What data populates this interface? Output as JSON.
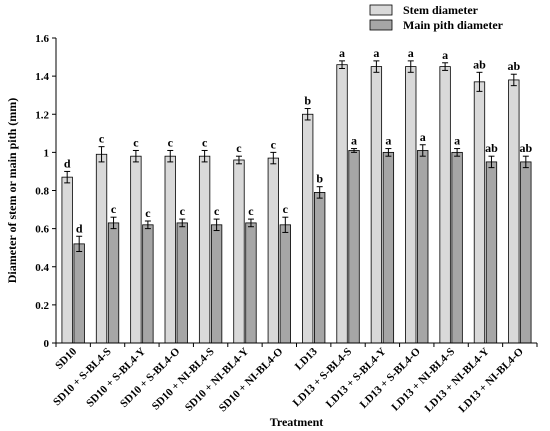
{
  "chart_data": {
    "type": "bar",
    "xlabel": "Treatment",
    "ylabel": "Diameter of stem or main pith (mm)",
    "ylim": [
      0,
      1.6
    ],
    "yticks": [
      "0",
      "0.2",
      "0.4",
      "0.6",
      "0.8",
      "1",
      "1.2",
      "1.4",
      "1.6"
    ],
    "legend_position": "top-right",
    "categories": [
      "SD10",
      "SD10 + S-BL4-S",
      "SD10 + S-BL4-Y",
      "SD10 + S-BL4-O",
      "SD10 + NI-BL4-S",
      "SD10 + NI-BL4-Y",
      "SD10 + NI-BL4-O",
      "LD13",
      "LD13 + S-BL4-S",
      "LD13 + S-BL4-Y",
      "LD13 + S-BL4-O",
      "LD13 + NI-BL4-S",
      "LD13 + NI-BL4-Y",
      "LD13 + NI-BL4-O"
    ],
    "series": [
      {
        "name": "Stem diameter",
        "color": "#d9d9d9",
        "values": [
          0.87,
          0.99,
          0.98,
          0.98,
          0.98,
          0.96,
          0.97,
          1.2,
          1.46,
          1.45,
          1.45,
          1.45,
          1.37,
          1.38
        ],
        "errors": [
          0.03,
          0.04,
          0.03,
          0.03,
          0.03,
          0.02,
          0.03,
          0.03,
          0.02,
          0.03,
          0.03,
          0.02,
          0.05,
          0.03
        ],
        "letters": [
          "d",
          "c",
          "c",
          "c",
          "c",
          "c",
          "c",
          "b",
          "a",
          "a",
          "a",
          "a",
          "ab",
          "ab"
        ]
      },
      {
        "name": "Main pith diameter",
        "color": "#a6a6a6",
        "values": [
          0.52,
          0.63,
          0.62,
          0.63,
          0.62,
          0.63,
          0.62,
          0.79,
          1.01,
          1.0,
          1.01,
          1.0,
          0.95,
          0.95
        ],
        "errors": [
          0.04,
          0.03,
          0.02,
          0.02,
          0.03,
          0.02,
          0.04,
          0.03,
          0.01,
          0.02,
          0.03,
          0.02,
          0.03,
          0.03
        ],
        "letters": [
          "d",
          "c",
          "c",
          "c",
          "c",
          "c",
          "c",
          "b",
          "a",
          "a",
          "a",
          "a",
          "ab",
          "ab"
        ]
      }
    ]
  }
}
